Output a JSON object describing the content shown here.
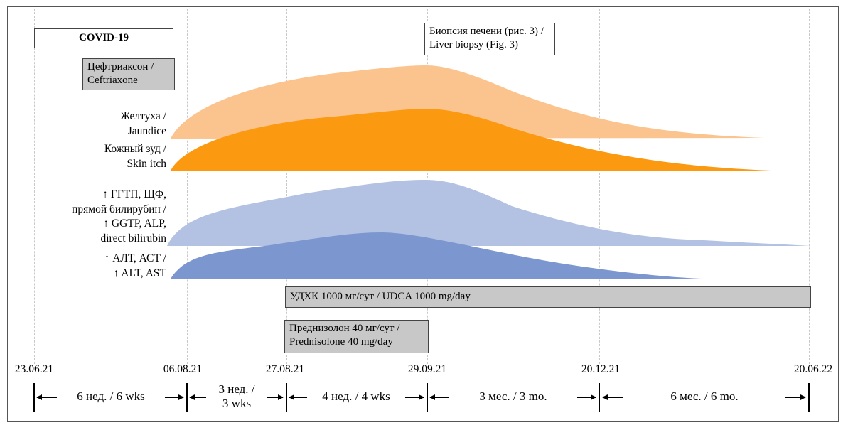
{
  "colors": {
    "jaundice": "#fbc48e",
    "itch": "#fb9a10",
    "ggtp": "#b3c1e2",
    "alt": "#7c96cf",
    "treatment_gray": "#c8c8c8"
  },
  "boxes": {
    "covid": "COVID-19",
    "biopsy_line1": "Биопсия печени (рис. 3) /",
    "biopsy_line2": "Liver biopsy (Fig. 3)",
    "ceftriaxone_line1": "Цефтриаксон /",
    "ceftriaxone_line2": "Ceftriaxone",
    "udca": "УДХК 1000 мг/сут / UDCA 1000 mg/day",
    "prednisolone_line1": "Преднизолон 40 мг/сут /",
    "prednisolone_line2": "Prednisolone 40 mg/day"
  },
  "labels": {
    "jaundice_ru": "Желтуха /",
    "jaundice_en": "Jaundice",
    "itch_ru": "Кожный зуд /",
    "itch_en": "Skin itch",
    "ggtp_1": "↑ ГГТП, ЩФ,",
    "ggtp_2": "прямой билирубин /",
    "ggtp_3": "↑ GGTP, ALP,",
    "ggtp_4": "direct bilirubin",
    "alt_1": "↑ АЛТ, АСТ /",
    "alt_2": "↑ ALT, AST"
  },
  "timeline": {
    "dates": [
      "23.06.21",
      "06.08.21",
      "27.08.21",
      "29.09.21",
      "20.12.21",
      "20.06.22"
    ],
    "segments": [
      {
        "line1": "6 нед. / 6 wks",
        "line2": ""
      },
      {
        "line1": "3 нед. /",
        "line2": "3 wks"
      },
      {
        "line1": "4 нед. / 4 wks",
        "line2": ""
      },
      {
        "line1": "3 мес. / 3 mo.",
        "line2": ""
      },
      {
        "line1": "6 мес. / 6 mo.",
        "line2": ""
      }
    ]
  }
}
